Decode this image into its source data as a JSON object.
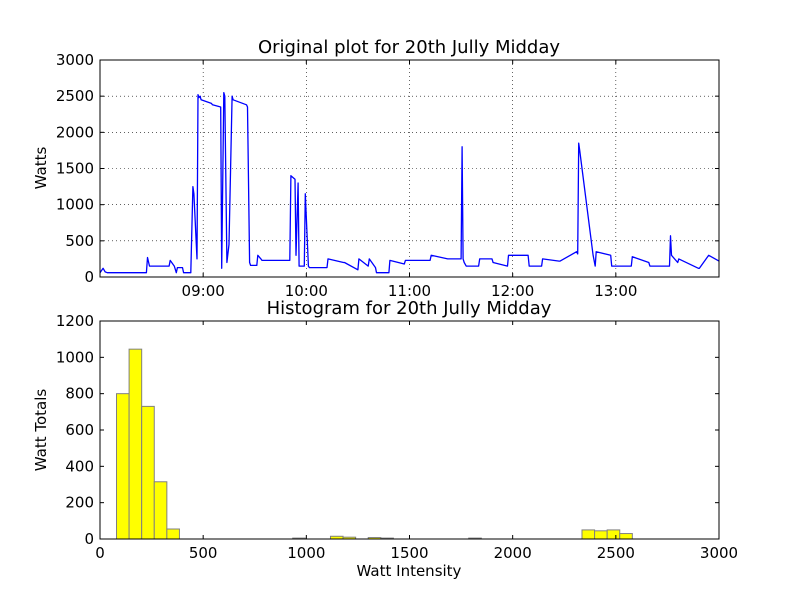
{
  "figure": {
    "background": "#ffffff"
  },
  "chart_data": [
    {
      "type": "line",
      "title": "Original plot for 20th Jully Midday",
      "xlabel": "",
      "ylabel": "Watts",
      "ylim": [
        0,
        3000
      ],
      "yticks": [
        0,
        500,
        1000,
        1500,
        2000,
        2500,
        3000
      ],
      "xlim_hours": [
        8.0,
        14.0
      ],
      "xticks": [
        {
          "hour": 9,
          "label": "09:00"
        },
        {
          "hour": 10,
          "label": "10:00"
        },
        {
          "hour": 11,
          "label": "11:00"
        },
        {
          "hour": 12,
          "label": "12:00"
        },
        {
          "hour": 13,
          "label": "13:00"
        }
      ],
      "grid": true,
      "line_color": "#0000ff",
      "series": [
        {
          "x": [
            8.0,
            8.03,
            8.05,
            8.07,
            8.45,
            8.46,
            8.48,
            8.67,
            8.68,
            8.72,
            8.74,
            8.75,
            8.8,
            8.81,
            8.88,
            8.9,
            8.91,
            8.94,
            8.95,
            8.96,
            8.97,
            8.98,
            9.08,
            9.09,
            9.17,
            9.18,
            9.2,
            9.21,
            9.23,
            9.25,
            9.28,
            9.29,
            9.42,
            9.43,
            9.45,
            9.46,
            9.52,
            9.53,
            9.56,
            9.57,
            9.84,
            9.85,
            9.89,
            9.9,
            9.92,
            9.93,
            9.98,
            9.99,
            10.02,
            10.03,
            10.2,
            10.21,
            10.36,
            10.37,
            10.5,
            10.51,
            10.6,
            10.61,
            10.67,
            10.68,
            10.8,
            10.81,
            10.95,
            10.96,
            11.2,
            11.21,
            11.37,
            11.5,
            11.51,
            11.52,
            11.53,
            11.55,
            11.57,
            11.67,
            11.68,
            11.8,
            11.81,
            11.95,
            11.96,
            12.15,
            12.16,
            12.28,
            12.29,
            12.45,
            12.46,
            12.62,
            12.63,
            12.64,
            12.65,
            12.78,
            12.8,
            12.81,
            12.95,
            12.96,
            13.15,
            13.16,
            13.32,
            13.33,
            13.52,
            13.53,
            13.54,
            13.6,
            13.61,
            13.8,
            13.81,
            13.9,
            14.0
          ],
          "y": [
            60,
            120,
            70,
            60,
            60,
            270,
            150,
            150,
            230,
            150,
            60,
            130,
            130,
            60,
            60,
            1250,
            1150,
            250,
            2520,
            2480,
            2500,
            2450,
            2400,
            2380,
            2350,
            120,
            2550,
            2500,
            200,
            450,
            2500,
            2450,
            2380,
            2350,
            200,
            160,
            160,
            300,
            250,
            230,
            230,
            1400,
            1350,
            300,
            1300,
            150,
            150,
            1150,
            150,
            130,
            130,
            250,
            200,
            200,
            100,
            250,
            150,
            250,
            130,
            60,
            60,
            230,
            180,
            230,
            230,
            300,
            250,
            250,
            1800,
            250,
            200,
            150,
            150,
            150,
            250,
            250,
            200,
            150,
            300,
            300,
            150,
            150,
            250,
            220,
            220,
            350,
            320,
            1850,
            1750,
            300,
            150,
            350,
            300,
            150,
            150,
            280,
            200,
            150,
            150,
            570,
            300,
            200,
            250,
            120,
            120,
            300,
            220
          ]
        }
      ]
    },
    {
      "type": "bar",
      "title": "Histogram for 20th Jully Midday",
      "xlabel": "Watt Intensity",
      "ylabel": "Watt Totals",
      "xlim": [
        0,
        3000
      ],
      "ylim": [
        0,
        1200
      ],
      "xticks": [
        0,
        500,
        1000,
        1500,
        2000,
        2500,
        3000
      ],
      "yticks": [
        0,
        200,
        400,
        600,
        800,
        1000,
        1200
      ],
      "bar_color": "#ffff00",
      "edge_color": "#808080",
      "bin_width": 61,
      "bins": [
        {
          "start": 80,
          "count": 800
        },
        {
          "start": 141,
          "count": 1045
        },
        {
          "start": 202,
          "count": 730
        },
        {
          "start": 263,
          "count": 315
        },
        {
          "start": 324,
          "count": 55
        },
        {
          "start": 934,
          "count": 5
        },
        {
          "start": 1117,
          "count": 15
        },
        {
          "start": 1178,
          "count": 10
        },
        {
          "start": 1300,
          "count": 8
        },
        {
          "start": 1361,
          "count": 5
        },
        {
          "start": 1787,
          "count": 5
        },
        {
          "start": 2336,
          "count": 50
        },
        {
          "start": 2397,
          "count": 45
        },
        {
          "start": 2458,
          "count": 50
        },
        {
          "start": 2519,
          "count": 30
        }
      ]
    }
  ]
}
